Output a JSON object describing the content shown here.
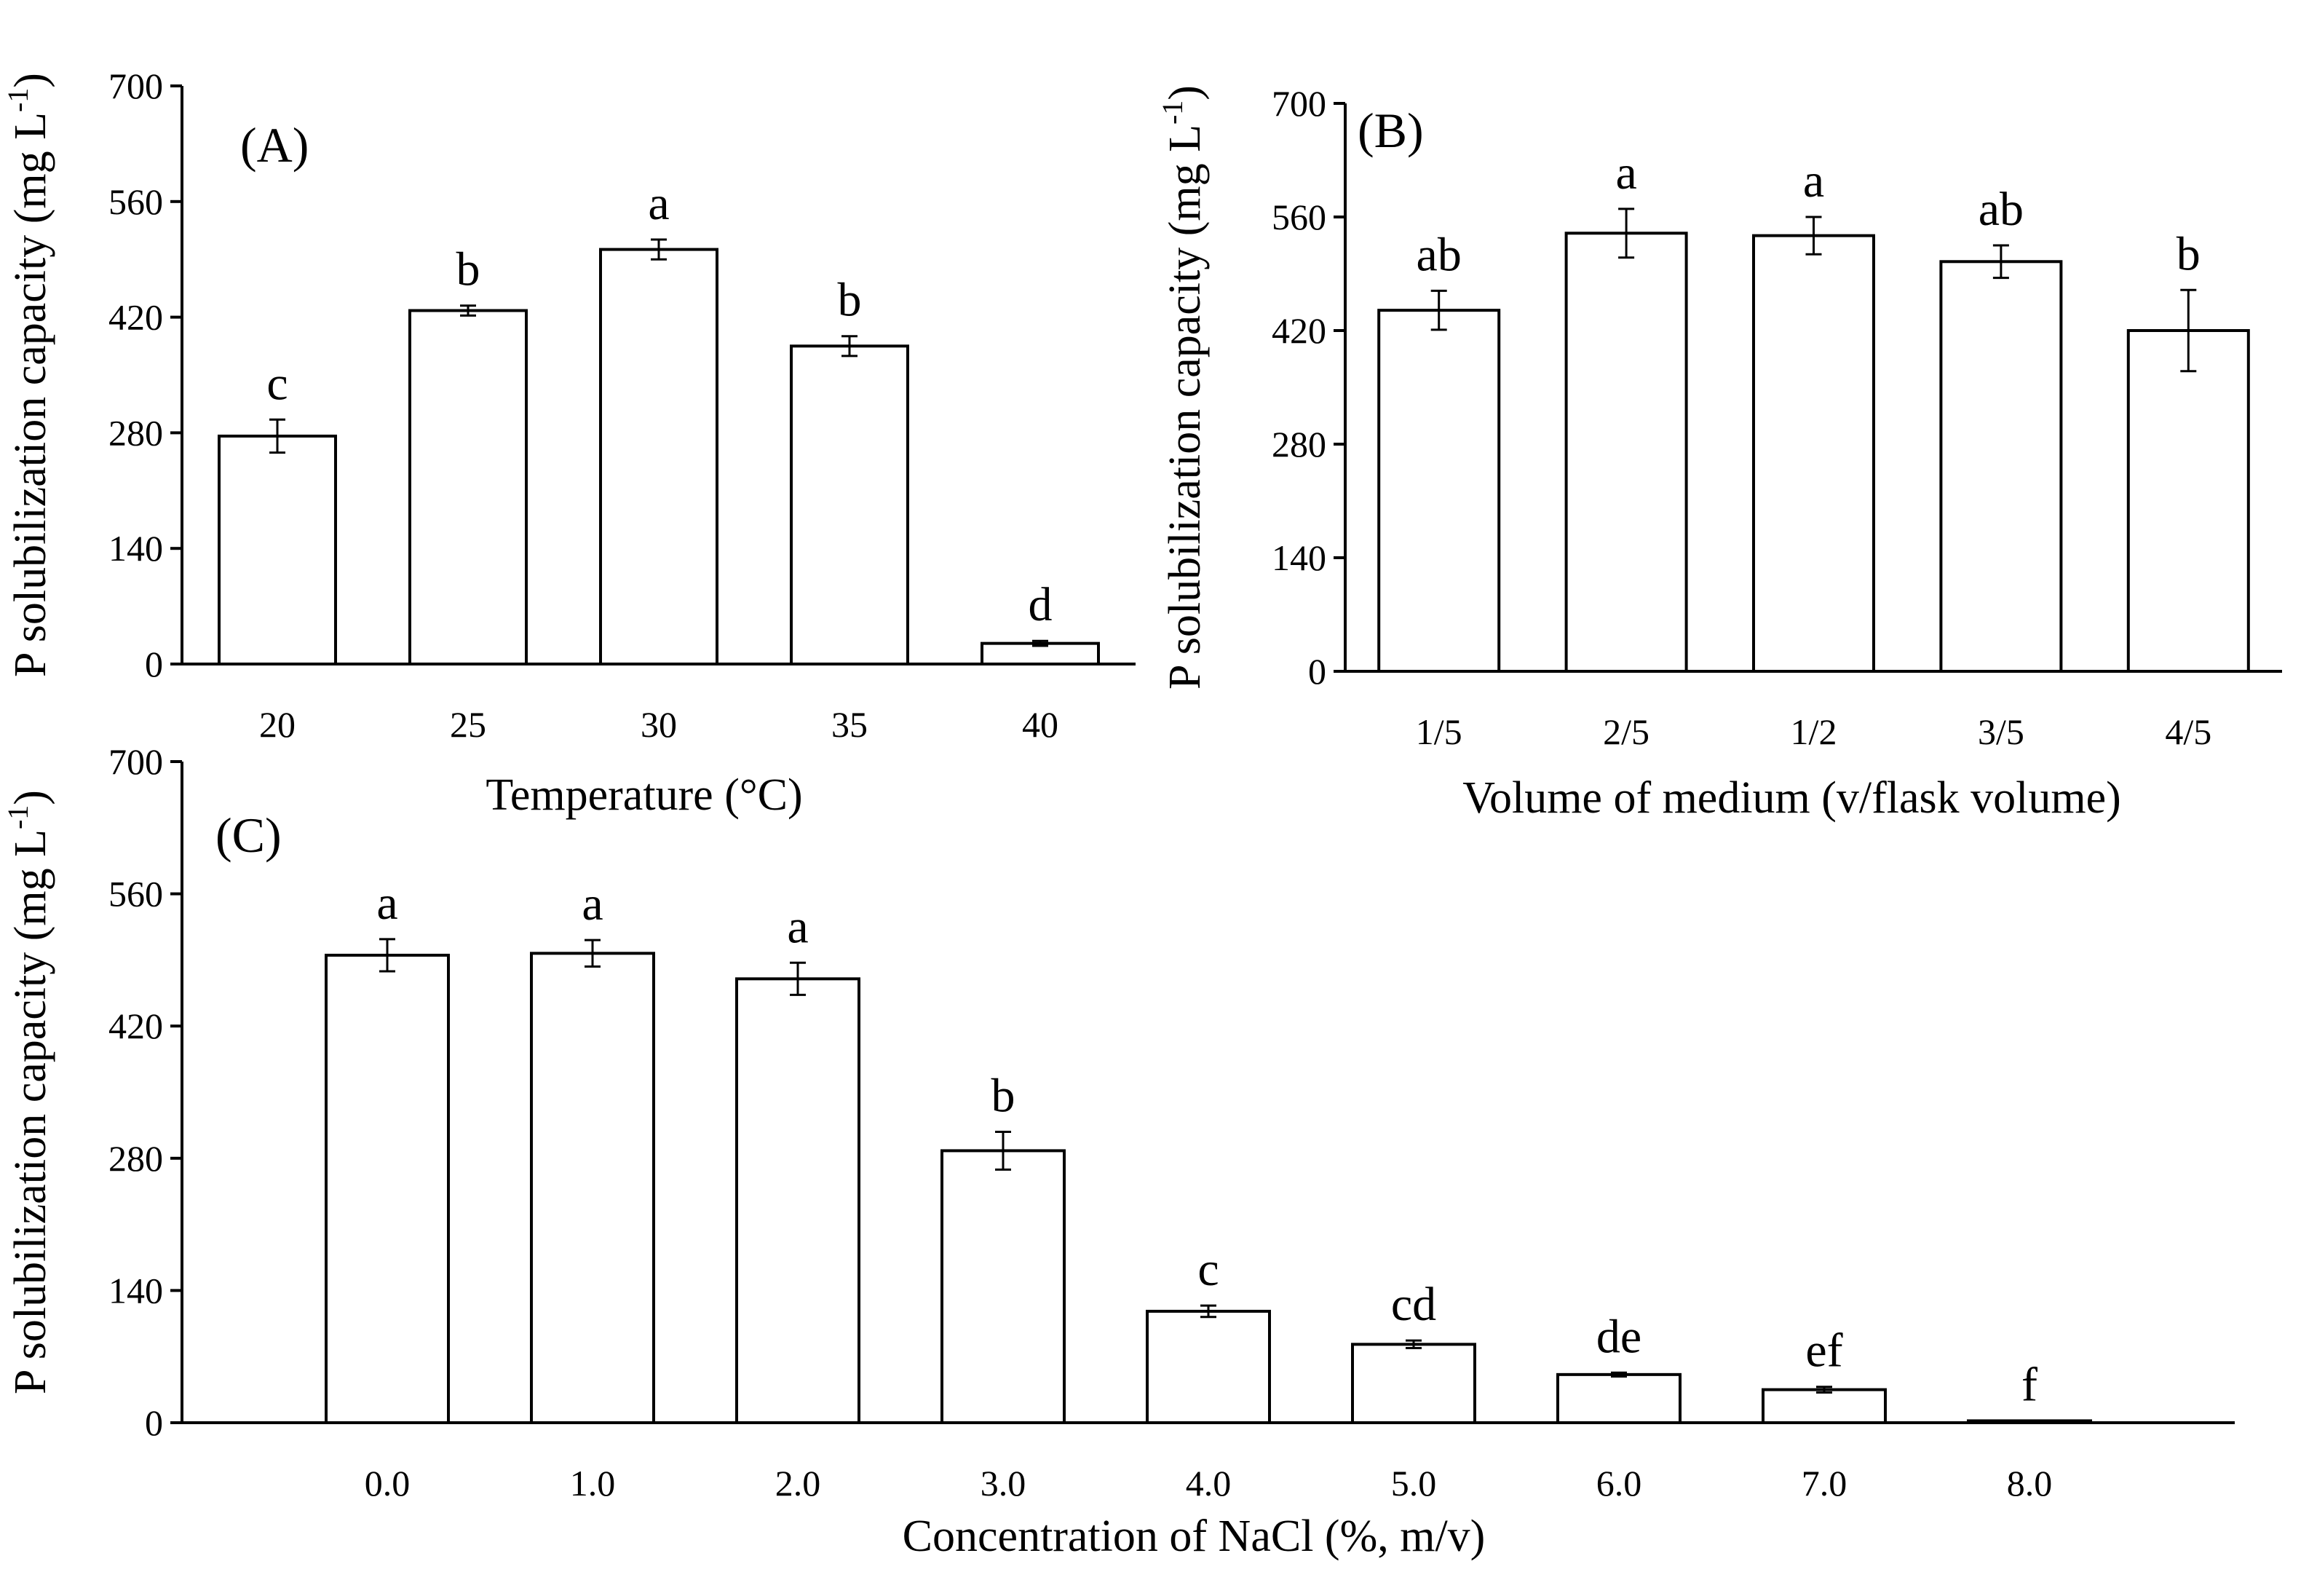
{
  "figure": {
    "accent_color": "#000000",
    "background_color": "#ffffff",
    "bar_fill": "#ffffff"
  },
  "chart_data": [
    {
      "id": "A",
      "type": "bar",
      "panel_label": "(A)",
      "title": "",
      "xlabel": "Temperature (°C)",
      "ylabel": "P solubilization capacity (mg L",
      "ylabel_sup": "-1",
      "ylabel_close": ")",
      "ylim": [
        0,
        700
      ],
      "yticks": [
        0,
        140,
        280,
        420,
        560,
        700
      ],
      "categories": [
        "20",
        "25",
        "30",
        "35",
        "40"
      ],
      "values": [
        276,
        428,
        502,
        385,
        25
      ],
      "errors": [
        20,
        6,
        12,
        12,
        3
      ],
      "letters": [
        "c",
        "b",
        "a",
        "b",
        "d"
      ],
      "grid": false
    },
    {
      "id": "B",
      "type": "bar",
      "panel_label": "(B)",
      "title": "",
      "xlabel": "Volume of medium (v/flask volume)",
      "ylabel": "P solubilization capacity (mg L",
      "ylabel_sup": "-1",
      "ylabel_close": ")",
      "ylim": [
        0,
        700
      ],
      "yticks": [
        0,
        140,
        280,
        420,
        560,
        700
      ],
      "categories": [
        "1/5",
        "2/5",
        "1/2",
        "3/5",
        "4/5"
      ],
      "values": [
        445,
        540,
        537,
        505,
        420
      ],
      "errors": [
        24,
        30,
        23,
        20,
        50
      ],
      "letters": [
        "ab",
        "a",
        "a",
        "ab",
        "b"
      ],
      "grid": false
    },
    {
      "id": "C",
      "type": "bar",
      "panel_label": "(C)",
      "title": "",
      "xlabel": "Concentration of NaCl (%, m/v)",
      "ylabel": "P solubilization capacity (mg L",
      "ylabel_sup": "-1",
      "ylabel_close": ")",
      "ylim": [
        0,
        700
      ],
      "yticks": [
        0,
        140,
        280,
        420,
        560,
        700
      ],
      "categories": [
        "0.0",
        "1.0",
        "2.0",
        "3.0",
        "4.0",
        "5.0",
        "6.0",
        "7.0",
        "8.0"
      ],
      "values": [
        495,
        497,
        470,
        288,
        118,
        83,
        51,
        35,
        2
      ],
      "errors": [
        17,
        14,
        17,
        20,
        6,
        4,
        2,
        3,
        0
      ],
      "letters": [
        "a",
        "a",
        "a",
        "b",
        "c",
        "cd",
        "de",
        "ef",
        "f"
      ],
      "grid": false
    }
  ]
}
